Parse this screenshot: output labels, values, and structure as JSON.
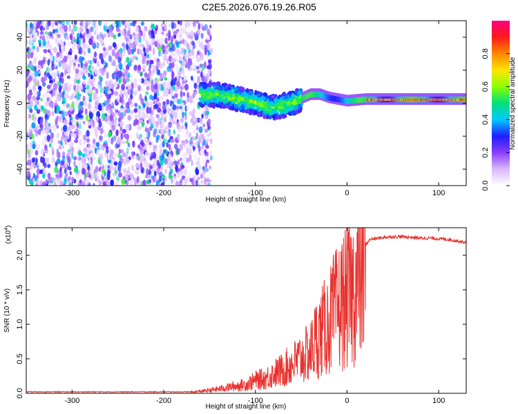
{
  "title": "C2E5.2026.076.19.26.R05",
  "chart_data": [
    {
      "type": "heatmap",
      "xlabel": "Height of straight line (km)",
      "ylabel": "Frequency (Hz)",
      "xlim": [
        -350,
        130
      ],
      "ylim": [
        -50,
        50
      ],
      "xticks": [
        -300,
        -200,
        -100,
        0,
        100
      ],
      "yticks": [
        -40,
        -20,
        0,
        20,
        40
      ],
      "colorbar": {
        "label": "Normalized spectral amplitude",
        "range": [
          0,
          1
        ],
        "ticks": [
          "0.0",
          "0.2",
          "0.4",
          "0.6",
          "0.8"
        ],
        "colors": [
          "#ffffff",
          "#d9b8ff",
          "#8b3dff",
          "#1e1eff",
          "#00c8ff",
          "#00e07a",
          "#8cff00",
          "#ffe600",
          "#ff8800",
          "#ff1a1a",
          "#ff0080"
        ]
      },
      "regions": [
        {
          "name": "noise",
          "x": [
            -350,
            -160
          ],
          "freq": [
            -50,
            50
          ],
          "amplitude": 0.15
        },
        {
          "name": "broad-signal",
          "x": [
            -160,
            -50
          ],
          "freq": [
            -10,
            8
          ],
          "amplitude": 0.35
        },
        {
          "name": "narrow-signal",
          "x": [
            -50,
            130
          ],
          "freq": [
            -2,
            6
          ],
          "amplitude": 0.9
        }
      ],
      "ridge": {
        "x": [
          -160,
          -140,
          -120,
          -100,
          -80,
          -60,
          -40,
          -30,
          -20,
          -10,
          0,
          20,
          40,
          60,
          80,
          100,
          130
        ],
        "freq": [
          5,
          5,
          3,
          0,
          -3,
          0,
          5,
          5,
          3,
          2,
          1,
          2,
          2,
          2,
          2,
          2,
          2
        ]
      }
    },
    {
      "type": "line",
      "xlabel": "Height of straight line (km)",
      "ylabel": "SNR (10 * v/v)",
      "multiplier_label": "(x10",
      "multiplier_exp": "4",
      "xlim": [
        -350,
        130
      ],
      "ylim": [
        0,
        24000
      ],
      "xticks": [
        -300,
        -200,
        -100,
        0,
        100
      ],
      "yticks": [
        "0.0",
        "0.5",
        "1.0",
        "1.5",
        "2.0"
      ],
      "color": "#e8322e",
      "series": [
        {
          "name": "SNR",
          "x": [
            -350,
            -300,
            -250,
            -200,
            -170,
            -150,
            -130,
            -110,
            -100,
            -90,
            -80,
            -70,
            -60,
            -50,
            -40,
            -35,
            -30,
            -25,
            -20,
            -15,
            -10,
            -5,
            0,
            5,
            10,
            15,
            20,
            25,
            30,
            40,
            50,
            60,
            70,
            80,
            90,
            100,
            110,
            120,
            130
          ],
          "y": [
            200,
            200,
            200,
            200,
            200,
            500,
            1000,
            1500,
            2200,
            2500,
            3300,
            4000,
            5000,
            6000,
            7000,
            9000,
            10000,
            11000,
            12000,
            13500,
            14500,
            15500,
            16500,
            17000,
            18500,
            20000,
            21500,
            22300,
            22400,
            22600,
            22700,
            22700,
            22600,
            22500,
            22500,
            22400,
            22300,
            22100,
            21800
          ]
        }
      ]
    }
  ]
}
